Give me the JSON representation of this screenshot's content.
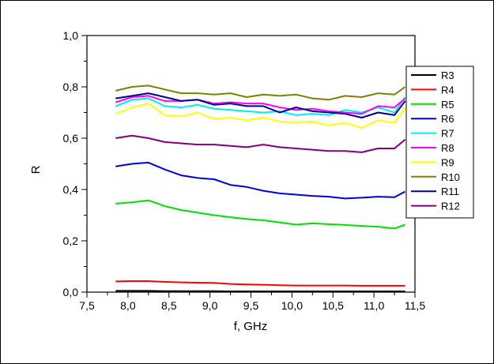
{
  "chart_data": {
    "type": "line",
    "title": "",
    "xlabel": "f, GHz",
    "ylabel": "R",
    "xlim": [
      7.5,
      11.5
    ],
    "ylim": [
      0.0,
      1.0
    ],
    "grid": false,
    "legend_position": "top-right",
    "x_ticks": [
      "7,5",
      "8,0",
      "8,5",
      "9,0",
      "9,5",
      "10,0",
      "10,5",
      "11,0",
      "11,5"
    ],
    "y_ticks": [
      "0,0",
      "0,2",
      "0,4",
      "0,6",
      "0,8",
      "1,0"
    ],
    "x": [
      7.85,
      8.05,
      8.25,
      8.45,
      8.65,
      8.85,
      9.05,
      9.25,
      9.45,
      9.65,
      9.85,
      10.05,
      10.25,
      10.45,
      10.65,
      10.85,
      11.05,
      11.25,
      11.38
    ],
    "series": [
      {
        "name": "R3",
        "color": "#000000",
        "values": [
          0.005,
          0.005,
          0.005,
          0.004,
          0.004,
          0.004,
          0.004,
          0.003,
          0.003,
          0.003,
          0.003,
          0.003,
          0.003,
          0.003,
          0.003,
          0.003,
          0.003,
          0.003,
          0.003
        ]
      },
      {
        "name": "R4",
        "color": "#ff0000",
        "values": [
          0.042,
          0.043,
          0.043,
          0.04,
          0.038,
          0.037,
          0.036,
          0.032,
          0.03,
          0.029,
          0.027,
          0.026,
          0.026,
          0.026,
          0.026,
          0.025,
          0.025,
          0.025,
          0.025
        ]
      },
      {
        "name": "R5",
        "color": "#00e000",
        "values": [
          0.345,
          0.35,
          0.358,
          0.335,
          0.32,
          0.31,
          0.3,
          0.292,
          0.285,
          0.28,
          0.272,
          0.263,
          0.268,
          0.265,
          0.262,
          0.258,
          0.255,
          0.248,
          0.263
        ]
      },
      {
        "name": "R6",
        "color": "#0000dd",
        "values": [
          0.49,
          0.5,
          0.505,
          0.478,
          0.455,
          0.445,
          0.44,
          0.418,
          0.41,
          0.395,
          0.385,
          0.38,
          0.375,
          0.372,
          0.365,
          0.368,
          0.372,
          0.37,
          0.392
        ]
      },
      {
        "name": "R7",
        "color": "#00eeee",
        "values": [
          0.725,
          0.75,
          0.755,
          0.725,
          0.72,
          0.73,
          0.715,
          0.71,
          0.705,
          0.7,
          0.705,
          0.69,
          0.695,
          0.69,
          0.71,
          0.7,
          0.72,
          0.7,
          0.76
        ]
      },
      {
        "name": "R8",
        "color": "#ff00ff",
        "values": [
          0.74,
          0.76,
          0.765,
          0.745,
          0.745,
          0.75,
          0.735,
          0.74,
          0.735,
          0.735,
          0.72,
          0.71,
          0.715,
          0.705,
          0.7,
          0.695,
          0.725,
          0.72,
          0.755
        ]
      },
      {
        "name": "R9",
        "color": "#ffff00",
        "values": [
          0.695,
          0.72,
          0.735,
          0.69,
          0.685,
          0.7,
          0.675,
          0.68,
          0.67,
          0.68,
          0.665,
          0.66,
          0.665,
          0.65,
          0.66,
          0.64,
          0.67,
          0.66,
          0.72
        ]
      },
      {
        "name": "R10",
        "color": "#808000",
        "values": [
          0.785,
          0.8,
          0.805,
          0.79,
          0.775,
          0.775,
          0.77,
          0.775,
          0.76,
          0.77,
          0.765,
          0.77,
          0.755,
          0.75,
          0.765,
          0.76,
          0.775,
          0.77,
          0.8
        ]
      },
      {
        "name": "R11",
        "color": "#00008b",
        "values": [
          0.755,
          0.765,
          0.775,
          0.76,
          0.745,
          0.75,
          0.73,
          0.735,
          0.725,
          0.725,
          0.7,
          0.72,
          0.705,
          0.7,
          0.695,
          0.68,
          0.7,
          0.69,
          0.745
        ]
      },
      {
        "name": "R12",
        "color": "#800080",
        "values": [
          0.6,
          0.61,
          0.6,
          0.585,
          0.58,
          0.575,
          0.575,
          0.57,
          0.565,
          0.575,
          0.565,
          0.56,
          0.555,
          0.55,
          0.55,
          0.545,
          0.56,
          0.56,
          0.595
        ]
      }
    ]
  }
}
